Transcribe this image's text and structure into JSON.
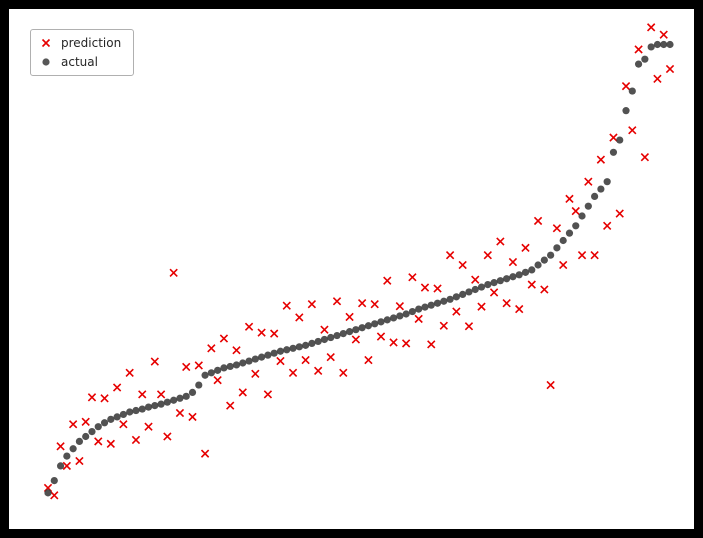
{
  "figure": {
    "background_color": "#000000",
    "plot_background_color": "#ffffff"
  },
  "legend": {
    "position": "upper-left",
    "items": [
      {
        "label": "prediction",
        "marker": "x",
        "color": "#e60000"
      },
      {
        "label": "actual",
        "marker": "circle",
        "color": "#3a3a3a",
        "opacity": 0.85
      }
    ]
  },
  "chart_data": {
    "type": "scatter",
    "title": "",
    "xlabel": "",
    "ylabel": "",
    "axes_visible": false,
    "grid": false,
    "legend_position": "upper-left",
    "x_note": "points evenly spaced by sample index 0-99; no tick labels visible",
    "xlim": [
      0,
      99
    ],
    "ylim": [
      0,
      10
    ],
    "n_points": 100,
    "series": [
      {
        "name": "prediction",
        "marker": "x",
        "color": "#e60000",
        "values": [
          0.45,
          0.3,
          1.3,
          0.9,
          1.75,
          1.0,
          1.8,
          2.3,
          1.4,
          2.28,
          1.35,
          2.5,
          1.75,
          2.8,
          1.43,
          2.36,
          1.7,
          3.03,
          2.36,
          1.5,
          4.84,
          1.98,
          2.92,
          1.9,
          2.95,
          1.15,
          3.3,
          2.65,
          3.5,
          2.13,
          3.26,
          2.4,
          3.74,
          2.78,
          3.62,
          2.36,
          3.6,
          3.04,
          4.17,
          2.8,
          3.93,
          3.06,
          4.2,
          2.84,
          3.68,
          3.12,
          4.26,
          2.8,
          3.94,
          3.48,
          4.22,
          3.06,
          4.2,
          3.54,
          4.68,
          3.42,
          4.16,
          3.4,
          4.75,
          3.9,
          4.54,
          3.38,
          4.52,
          3.76,
          5.2,
          4.05,
          5.0,
          3.75,
          4.7,
          4.15,
          5.2,
          4.44,
          5.48,
          4.22,
          5.06,
          4.1,
          5.35,
          4.6,
          5.9,
          4.5,
          2.55,
          5.75,
          5.0,
          6.35,
          6.1,
          5.2,
          6.7,
          5.2,
          7.15,
          5.8,
          7.6,
          6.05,
          8.65,
          7.75,
          9.4,
          7.2,
          9.85,
          8.8,
          9.7,
          9.0
        ]
      },
      {
        "name": "actual",
        "marker": "circle",
        "color": "#3a3a3a",
        "values": [
          0.35,
          0.6,
          0.9,
          1.1,
          1.25,
          1.4,
          1.5,
          1.6,
          1.7,
          1.78,
          1.85,
          1.9,
          1.95,
          2.0,
          2.03,
          2.06,
          2.1,
          2.13,
          2.16,
          2.2,
          2.24,
          2.28,
          2.32,
          2.4,
          2.55,
          2.75,
          2.8,
          2.85,
          2.9,
          2.93,
          2.96,
          3.0,
          3.04,
          3.08,
          3.12,
          3.16,
          3.2,
          3.24,
          3.27,
          3.3,
          3.33,
          3.36,
          3.4,
          3.44,
          3.48,
          3.52,
          3.56,
          3.6,
          3.64,
          3.68,
          3.72,
          3.76,
          3.8,
          3.84,
          3.88,
          3.92,
          3.96,
          4.0,
          4.05,
          4.1,
          4.14,
          4.18,
          4.22,
          4.26,
          4.3,
          4.35,
          4.4,
          4.45,
          4.5,
          4.55,
          4.6,
          4.64,
          4.68,
          4.72,
          4.76,
          4.8,
          4.85,
          4.9,
          5.0,
          5.1,
          5.2,
          5.35,
          5.5,
          5.65,
          5.8,
          6.0,
          6.2,
          6.4,
          6.55,
          6.7,
          7.3,
          7.55,
          8.15,
          8.55,
          9.1,
          9.2,
          9.45,
          9.5,
          9.5,
          9.5
        ]
      }
    ]
  }
}
